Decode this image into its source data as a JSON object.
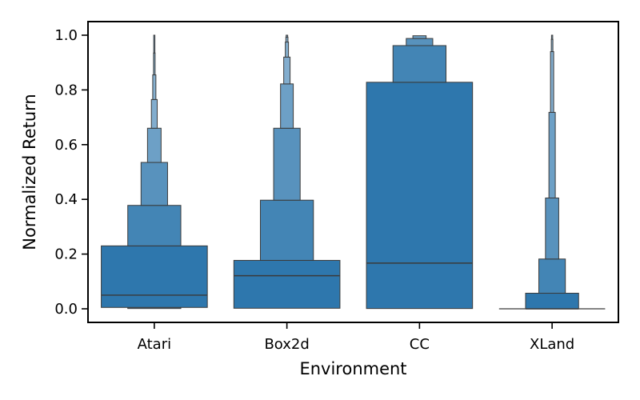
{
  "chart_data": {
    "type": "boxen",
    "xlabel": "Environment",
    "ylabel": "Normalized Return",
    "ylim": [
      0,
      1.0
    ],
    "yticks": [
      "0.0",
      "0.2",
      "0.4",
      "0.6",
      "0.8",
      "1.0"
    ],
    "categories": [
      "Atari",
      "Box2d",
      "CC",
      "XLand"
    ],
    "grid": false,
    "color": "#2e77ad",
    "edge_color": "#3a3a3a",
    "groups": [
      {
        "name": "Atari",
        "median": 0.05,
        "boxes": [
          {
            "low": 0.005,
            "high": 0.23,
            "width": 1.0
          },
          {
            "low": 0.23,
            "high": 0.378,
            "width": 0.5
          },
          {
            "low": 0.378,
            "high": 0.535,
            "width": 0.25
          },
          {
            "low": 0.535,
            "high": 0.66,
            "width": 0.128
          },
          {
            "low": 0.66,
            "high": 0.765,
            "width": 0.055
          },
          {
            "low": 0.765,
            "high": 0.855,
            "width": 0.03
          },
          {
            "low": 0.855,
            "high": 0.935,
            "width": 0.015
          },
          {
            "low": 0.935,
            "high": 1.0,
            "width": 0.008
          }
        ],
        "lower_tail": [
          {
            "low": 0.001,
            "high": 0.005,
            "width": 0.5
          }
        ]
      },
      {
        "name": "Box2d",
        "median": 0.121,
        "boxes": [
          {
            "low": 0.002,
            "high": 0.177,
            "width": 1.0
          },
          {
            "low": 0.177,
            "high": 0.397,
            "width": 0.5
          },
          {
            "low": 0.397,
            "high": 0.66,
            "width": 0.25
          },
          {
            "low": 0.66,
            "high": 0.822,
            "width": 0.12
          },
          {
            "low": 0.822,
            "high": 0.92,
            "width": 0.06
          },
          {
            "low": 0.92,
            "high": 0.975,
            "width": 0.03
          },
          {
            "low": 0.975,
            "high": 0.993,
            "width": 0.02
          },
          {
            "low": 0.993,
            "high": 1.0,
            "width": 0.015
          }
        ],
        "lower_tail": []
      },
      {
        "name": "CC",
        "median": 0.167,
        "boxes": [
          {
            "low": 0.001,
            "high": 0.828,
            "width": 1.0
          },
          {
            "low": 0.828,
            "high": 0.962,
            "width": 0.5
          },
          {
            "low": 0.962,
            "high": 0.988,
            "width": 0.25
          },
          {
            "low": 0.988,
            "high": 0.998,
            "width": 0.125
          }
        ],
        "lower_tail": []
      },
      {
        "name": "XLand",
        "median": 0.0,
        "boxes": [
          {
            "low": 0.0,
            "high": 0.057,
            "width": 0.5
          },
          {
            "low": 0.057,
            "high": 0.182,
            "width": 0.25
          },
          {
            "low": 0.182,
            "high": 0.405,
            "width": 0.125
          },
          {
            "low": 0.405,
            "high": 0.718,
            "width": 0.06
          },
          {
            "low": 0.718,
            "high": 0.94,
            "width": 0.03
          },
          {
            "low": 0.94,
            "high": 0.985,
            "width": 0.015
          },
          {
            "low": 0.985,
            "high": 1.0,
            "width": 0.01
          }
        ],
        "lower_tail": [],
        "baseline_width": 1.0
      }
    ]
  }
}
